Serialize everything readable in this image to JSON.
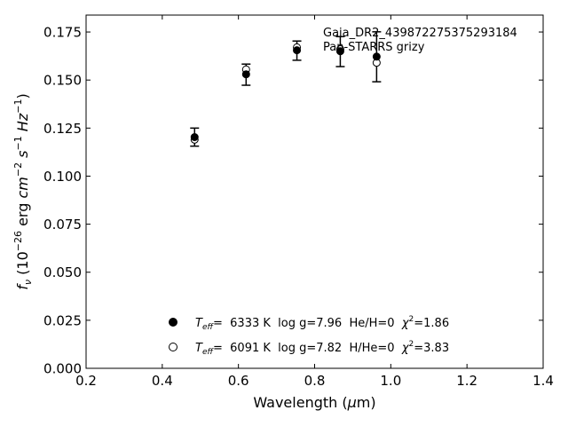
{
  "chart_data": {
    "type": "scatter",
    "xlim": [
      0.2,
      1.4
    ],
    "ylim": [
      0.0,
      0.1838
    ],
    "xticks": [
      "0.2",
      "0.4",
      "0.6",
      "0.8",
      "1.0",
      "1.2",
      "1.4"
    ],
    "yticks": [
      "0.000",
      "0.025",
      "0.050",
      "0.075",
      "0.100",
      "0.125",
      "0.150",
      "0.175"
    ],
    "xlabel": {
      "prefix": "Wavelength (",
      "mu": "μ",
      "suffix": "m)"
    },
    "ylabel": {
      "f": "f",
      "nu": "ν",
      "open": " (10",
      "exp1": "−26",
      "erg": " erg ",
      "cm": "cm",
      "exp2": "−2",
      "s": " s",
      "exp3": "−1",
      "hz": " Hz",
      "exp4": "−1",
      "close": ")"
    },
    "annotation": [
      "Gaia_DR2_439872275375293184",
      "Pan-STARRS grizy"
    ],
    "observed": {
      "x": [
        0.4849,
        0.6201,
        0.7535,
        0.8674,
        0.9628
      ],
      "y": [
        0.1203,
        0.1528,
        0.1653,
        0.1648,
        0.1621
      ],
      "yerr": [
        0.0047,
        0.0055,
        0.005,
        0.0078,
        0.013
      ]
    },
    "series": [
      {
        "name": "T_eff= 6333 K log g=7.96 He/H=0 χ2=1.86",
        "marker": "filled-circle",
        "x": [
          0.4849,
          0.6201,
          0.7535,
          0.8674,
          0.9628
        ],
        "y": [
          0.1203,
          0.153,
          0.1655,
          0.165,
          0.1622
        ]
      },
      {
        "name": "T_eff= 6091 K log g=7.82 H/He=0 χ2=3.83",
        "marker": "open-circle",
        "x": [
          0.4849,
          0.6201,
          0.7535,
          0.8674,
          0.9628
        ],
        "y": [
          0.119,
          0.1555,
          0.167,
          0.166,
          0.159
        ]
      }
    ],
    "legend": [
      {
        "T": "T",
        "sub": "eff",
        "text": "=  6333 K  log g=7.96  He/H=0  ",
        "chi": "χ",
        "sup": "2",
        "val": "=1.86"
      },
      {
        "T": "T",
        "sub": "eff",
        "text": "=  6091 K  log g=7.82  H/He=0  ",
        "chi": "χ",
        "sup": "2",
        "val": "=3.83"
      }
    ]
  }
}
